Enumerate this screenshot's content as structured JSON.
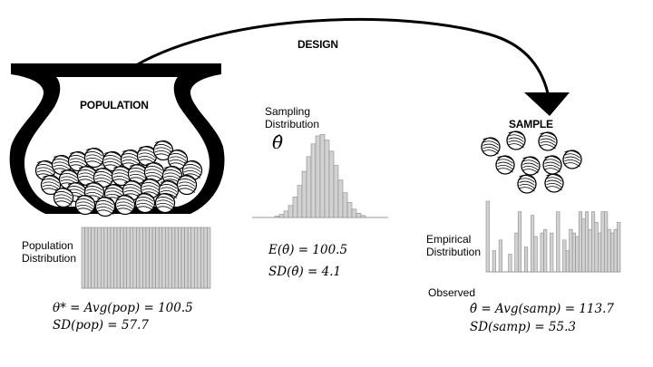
{
  "design_label": "DESIGN",
  "population": {
    "title": "POPULATION",
    "dist_label_1": "Population",
    "dist_label_2": "Distribution",
    "theta_star": "θ* = Avg(pop) = 100.5",
    "sd": "SD(pop)  = 57.7"
  },
  "sampling": {
    "label_1": "Sampling",
    "label_2": "Distribution",
    "theta_hat": "θ̂",
    "expectation": "E(θ̂) = 100.5",
    "sd": "SD(θ̂) = 4.1"
  },
  "sample": {
    "title": "SAMPLE",
    "empirical_1": "Empirical",
    "empirical_2": "Distribution",
    "observed": "Observed",
    "theta_hat_obs": "θ̂ = Avg(samp) = 113.7",
    "sd": "SD(samp)  = 55.3"
  },
  "colors": {
    "bar_fill": "#d2d2d2",
    "bar_stroke": "#8a8a8a",
    "ink": "#000000"
  },
  "icons": [
    "curved-arrow-icon",
    "jar-icon",
    "marble-icon"
  ]
}
